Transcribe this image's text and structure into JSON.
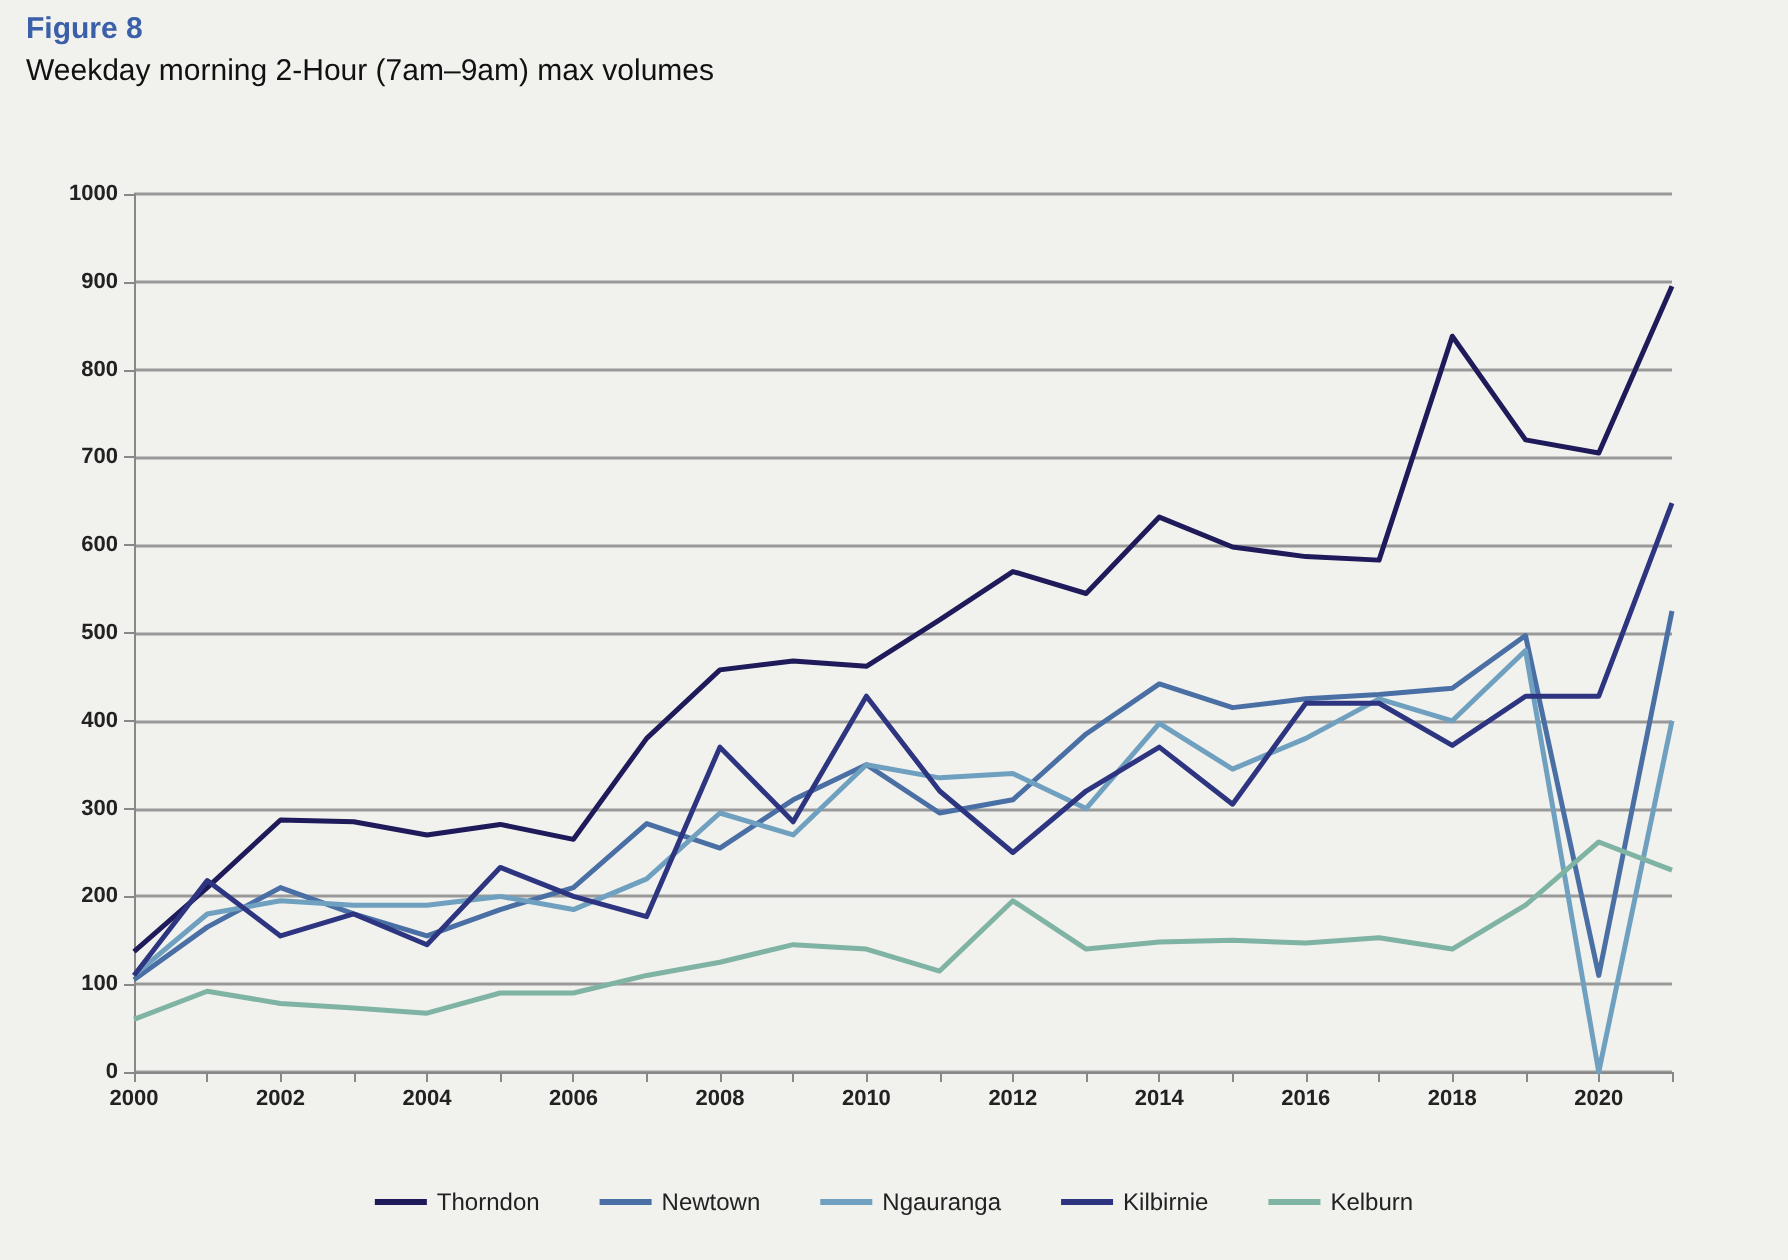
{
  "chart_data": {
    "type": "line",
    "title": "Figure 8",
    "subtitle": "Weekday morning 2-Hour (7am–9am) max volumes",
    "categories": [
      "2000",
      null,
      "2002",
      null,
      "2004",
      null,
      "2006",
      null,
      "2008",
      null,
      "2010",
      null,
      "2012",
      null,
      "2014",
      null,
      "2016",
      null,
      "2018",
      null,
      "2020",
      null
    ],
    "series": [
      {
        "name": "Thorndon",
        "color": "#1f1a5a",
        "values": [
          137,
          210,
          287,
          285,
          270,
          282,
          265,
          380,
          458,
          468,
          462,
          515,
          570,
          545,
          632,
          598,
          587,
          583,
          838,
          720,
          705,
          895
        ]
      },
      {
        "name": "Newtown",
        "color": "#4a6fa5",
        "values": [
          105,
          165,
          210,
          180,
          155,
          185,
          210,
          283,
          255,
          310,
          350,
          295,
          310,
          385,
          442,
          415,
          425,
          430,
          437,
          497,
          110,
          525
        ]
      },
      {
        "name": "Ngauranga",
        "color": "#6fa0bf",
        "values": [
          110,
          180,
          195,
          190,
          190,
          200,
          185,
          220,
          295,
          270,
          350,
          335,
          340,
          300,
          397,
          345,
          380,
          425,
          400,
          480,
          0,
          400
        ]
      },
      {
        "name": "Kilbirnie",
        "color": "#2e3580",
        "values": [
          110,
          218,
          155,
          180,
          145,
          233,
          200,
          177,
          370,
          285,
          428,
          320,
          250,
          320,
          370,
          305,
          420,
          420,
          372,
          428,
          428,
          648
        ]
      },
      {
        "name": "Kelburn",
        "color": "#7fb3a3",
        "values": [
          60,
          92,
          78,
          73,
          67,
          90,
          90,
          110,
          125,
          145,
          140,
          115,
          195,
          140,
          148,
          150,
          147,
          153,
          140,
          190,
          262,
          230
        ]
      }
    ],
    "ylim": [
      0,
      1000
    ],
    "yticks": [
      0,
      100,
      200,
      300,
      400,
      500,
      600,
      700,
      800,
      900,
      1000
    ],
    "grid": "y",
    "legend": "bottom",
    "marker": "none",
    "line_style": "solid"
  }
}
